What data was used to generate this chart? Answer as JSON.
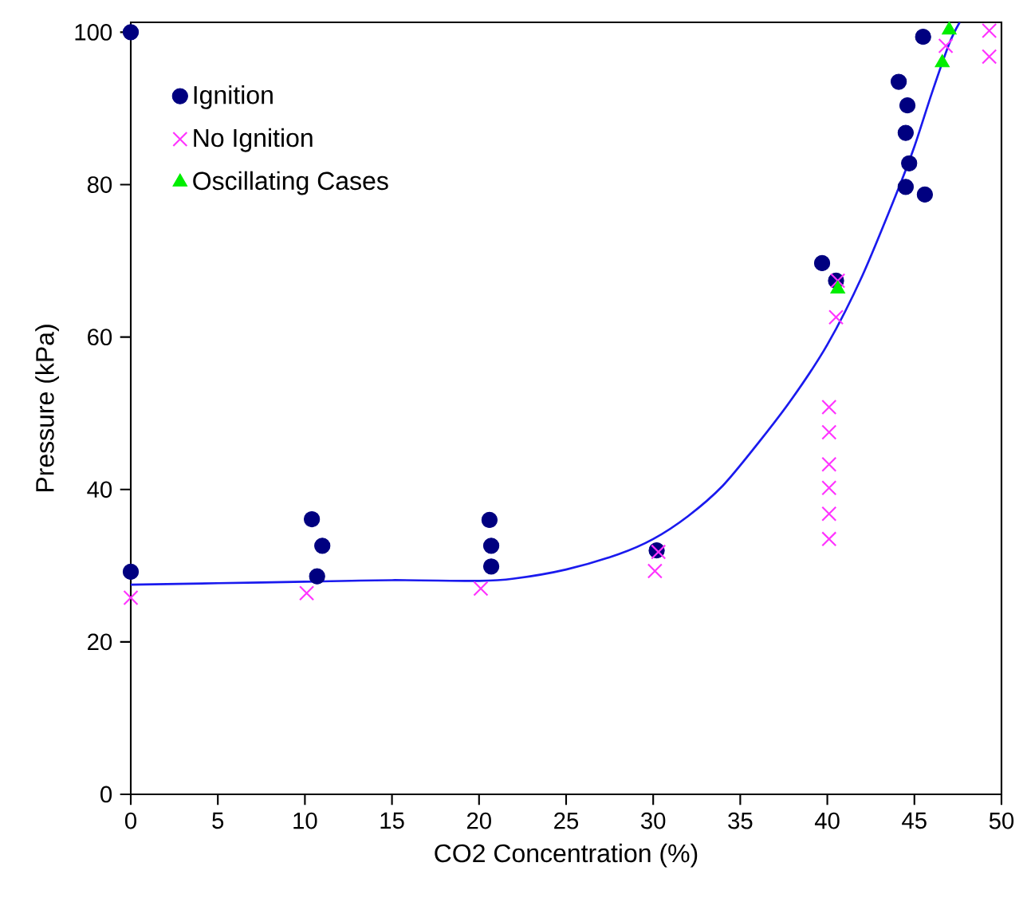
{
  "chart_data": {
    "type": "scatter",
    "xlabel": "CO2 Concentration (%)",
    "ylabel": "Pressure (kPa)",
    "xlim": [
      0,
      50
    ],
    "ylim": [
      0,
      101.3
    ],
    "xticks": [
      0,
      5,
      10,
      15,
      20,
      25,
      30,
      35,
      40,
      45,
      50
    ],
    "yticks": [
      0,
      20,
      40,
      60,
      80,
      100
    ],
    "grid": false,
    "legend": "top left",
    "series": [
      {
        "name": "Ignition",
        "color": "#000080",
        "marker": "circle",
        "x": [
          0,
          0,
          10.4,
          11.0,
          10.7,
          20.6,
          20.7,
          20.7,
          30.2,
          39.7,
          40.5,
          44.1,
          44.6,
          44.5,
          44.7,
          44.5,
          45.6,
          45.5
        ],
        "values": [
          100,
          29.2,
          36.1,
          32.6,
          28.6,
          36.0,
          32.6,
          29.9,
          32.0,
          69.7,
          67.4,
          93.5,
          90.4,
          86.8,
          82.8,
          79.7,
          78.7,
          99.4
        ]
      },
      {
        "name": "No Ignition",
        "color": "#ff33ff",
        "marker": "cross",
        "x": [
          0,
          10.1,
          20.1,
          30.1,
          30.3,
          40.1,
          40.1,
          40.1,
          40.1,
          40.1,
          40.1,
          40.5,
          40.6,
          46.8,
          49.3,
          49.3
        ],
        "values": [
          25.8,
          26.4,
          27.0,
          29.3,
          31.8,
          50.8,
          47.5,
          43.3,
          40.2,
          36.8,
          33.5,
          62.6,
          67.4,
          98.2,
          100.2,
          96.8
        ]
      },
      {
        "name": "Oscillating Cases",
        "color": "#00ee00",
        "marker": "triangle",
        "x": [
          40.6,
          46.6,
          47.0
        ],
        "values": [
          66.3,
          96.0,
          100.3
        ]
      },
      {
        "type": "line",
        "color": "#1a1aee",
        "marker": "none",
        "x": [
          0,
          5,
          10,
          15,
          20,
          22,
          25,
          28,
          30,
          32,
          34,
          36,
          38,
          40,
          42,
          44,
          45,
          46,
          47,
          47.6
        ],
        "values": [
          27.5,
          27.7,
          27.9,
          28.1,
          28.0,
          28.3,
          29.5,
          31.5,
          33.5,
          36.5,
          40.5,
          46.0,
          52.0,
          59.0,
          68.0,
          79.0,
          85.0,
          92.0,
          98.5,
          101.3
        ]
      }
    ]
  }
}
